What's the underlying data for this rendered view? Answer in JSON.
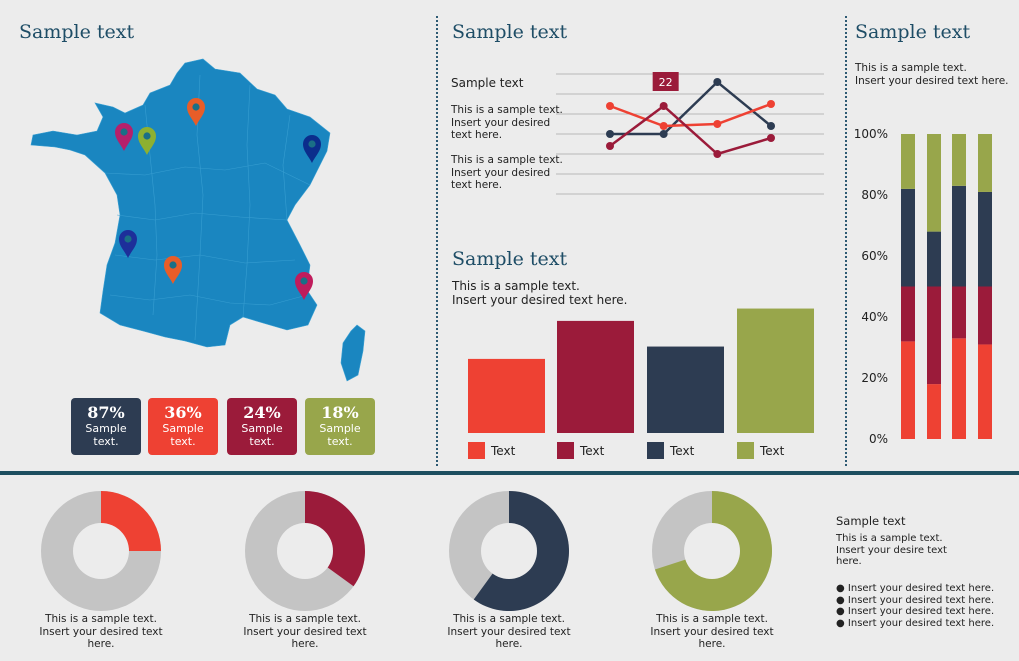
{
  "map_section": {
    "title": "Sample text",
    "badges": [
      {
        "pct": "87%",
        "label1": "Sample",
        "label2": "text.",
        "color": "#2d3c52"
      },
      {
        "pct": "36%",
        "label1": "Sample",
        "label2": "text.",
        "color": "#ee4133"
      },
      {
        "pct": "24%",
        "label1": "Sample",
        "label2": "text.",
        "color": "#9b1b3a"
      },
      {
        "pct": "18%",
        "label1": "Sample",
        "label2": "text.",
        "color": "#98a64b"
      }
    ],
    "pin_colors": [
      "#e85d28",
      "#b5206b",
      "#8db031",
      "#0b2d8c",
      "#1d2f9a",
      "#e85d28",
      "#c01c5c"
    ]
  },
  "line_section": {
    "title": "Sample text",
    "subtitle": "Sample text",
    "para1": [
      "This is a sample text.",
      "Insert your desired",
      "text here."
    ],
    "para2": [
      "This is a sample text.",
      "Insert your desired",
      "text here."
    ],
    "callout": "22"
  },
  "bar_section": {
    "title": "Sample text",
    "desc1": "This is a sample text.",
    "desc2": "Insert your desired text here."
  },
  "stack_section": {
    "title": "Sample text",
    "desc1": "This is a sample text.",
    "desc2": "Insert your desired text here."
  },
  "donut_section": {
    "captions": [
      [
        "This is a sample text.",
        "Insert your desired text",
        "here."
      ],
      [
        "This is a sample text.",
        "Insert your desired text",
        "here."
      ],
      [
        "This is a sample text.",
        "Insert your desired text",
        "here."
      ],
      [
        "This is a sample text.",
        "Insert your desired text",
        "here."
      ]
    ]
  },
  "side_text": {
    "title": "Sample text",
    "para": [
      "This is a sample text.",
      "Insert your desire text",
      "here."
    ],
    "bullets": [
      "Insert your desired text here.",
      "Insert your desired text here.",
      "Insert your desired text here.",
      "Insert your desired text here."
    ]
  },
  "chart_data": [
    {
      "type": "line",
      "x": [
        1,
        2,
        3,
        4
      ],
      "ylim": [
        0,
        6
      ],
      "grid": true,
      "series": [
        {
          "values": [
            3.0,
            3.0,
            5.6,
            3.4
          ],
          "color": "#2d3c52"
        },
        {
          "values": [
            4.4,
            3.4,
            3.5,
            4.5
          ],
          "color": "#ee4133"
        },
        {
          "values": [
            2.4,
            4.4,
            2.0,
            2.8
          ],
          "color": "#9b1b3a"
        }
      ],
      "annotations": [
        {
          "text": "22",
          "series": 2,
          "index": 1
        }
      ]
    },
    {
      "type": "bar",
      "categories": [
        "Text",
        "Text",
        "Text",
        "Text"
      ],
      "values": [
        78,
        118,
        91,
        131
      ],
      "colors": [
        "#ee4133",
        "#9b1b3a",
        "#2d3c52",
        "#98a64b"
      ],
      "ylim": [
        0,
        140
      ]
    },
    {
      "type": "bar",
      "stacked": true,
      "ylim": [
        0,
        100
      ],
      "ytick_labels": [
        "0%",
        "20%",
        "40%",
        "60%",
        "80%",
        "100%"
      ],
      "series": [
        {
          "color": "#ee4133",
          "values": [
            32,
            18,
            33,
            31
          ]
        },
        {
          "color": "#9b1b3a",
          "values": [
            18,
            32,
            17,
            19
          ]
        },
        {
          "color": "#2d3c52",
          "values": [
            32,
            18,
            33,
            31
          ]
        },
        {
          "color": "#98a64b",
          "values": [
            18,
            32,
            17,
            19
          ]
        }
      ]
    },
    {
      "type": "pie",
      "donuts": [
        {
          "value": 25,
          "color": "#ee4133"
        },
        {
          "value": 35,
          "color": "#9b1b3a"
        },
        {
          "value": 60,
          "color": "#2d3c52"
        },
        {
          "value": 70,
          "color": "#98a64b"
        }
      ],
      "rest_color": "#c4c4c4"
    }
  ]
}
